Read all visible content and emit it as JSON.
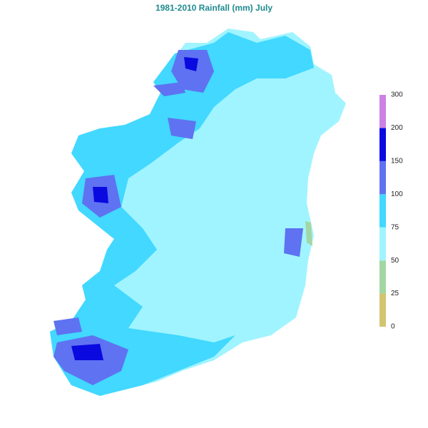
{
  "title": "1981-2010 Rainfall (mm) July",
  "legend": {
    "ticks": [
      0,
      25,
      50,
      75,
      100,
      150,
      200,
      300
    ],
    "colors": [
      "#d2c470",
      "#a2d7a4",
      "#a0f4ff",
      "#42d8ff",
      "#5f72f2",
      "#0a0ae0",
      "#cc82e4"
    ]
  }
}
